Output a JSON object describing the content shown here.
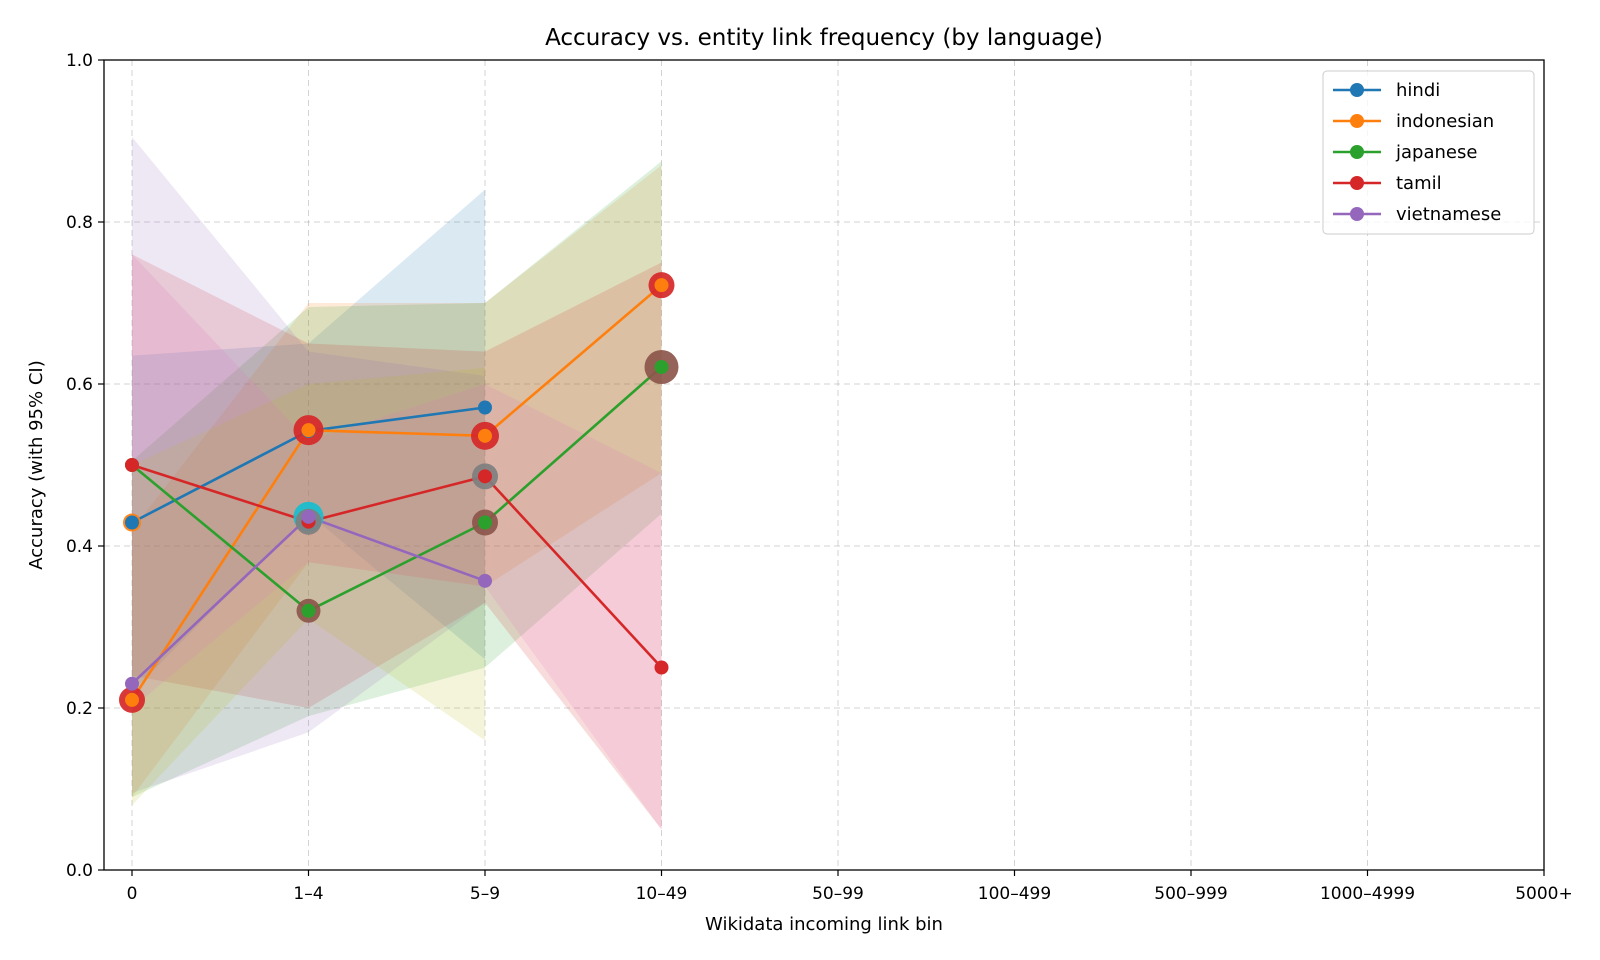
{
  "chart_data": {
    "type": "line",
    "title": "Accuracy vs. entity link frequency (by language)",
    "xlabel": "Wikidata incoming link bin",
    "ylabel": "Accuracy (with 95% CI)",
    "categories": [
      "0",
      "1–4",
      "5–9",
      "10–49",
      "50–99",
      "100–499",
      "500–999",
      "1000–4999",
      "5000+"
    ],
    "ylim": [
      0,
      1
    ],
    "yticks": [
      "0.0",
      "0.2",
      "0.4",
      "0.6",
      "0.8",
      "1.0"
    ],
    "grid": true,
    "legend_position": "top-right",
    "series": [
      {
        "name": "hindi",
        "color": "#1f77b4",
        "values": [
          0.429,
          0.542,
          0.571,
          null,
          null,
          null,
          null,
          null,
          null
        ],
        "ci": [
          [
            0.22,
            0.635
          ],
          [
            0.44,
            0.65
          ],
          [
            0.26,
            0.84
          ],
          null,
          null,
          null,
          null,
          null,
          null
        ]
      },
      {
        "name": "indonesian",
        "color": "#ff7f0e",
        "values": [
          0.21,
          0.543,
          0.536,
          0.722,
          null,
          null,
          null,
          null,
          null
        ],
        "ci": [
          [
            0.09,
            0.42
          ],
          [
            0.38,
            0.7
          ],
          [
            0.35,
            0.7
          ],
          [
            0.49,
            0.87
          ],
          null,
          null,
          null,
          null,
          null
        ]
      },
      {
        "name": "japanese",
        "color": "#2ca02c",
        "values": [
          0.5,
          0.32,
          0.429,
          0.621,
          null,
          null,
          null,
          null,
          null
        ],
        "ci": [
          [
            0.09,
            0.505
          ],
          [
            0.19,
            0.695
          ],
          [
            0.25,
            0.7
          ],
          [
            0.44,
            0.875
          ],
          null,
          null,
          null,
          null,
          null
        ]
      },
      {
        "name": "tamil",
        "color": "#d62728",
        "values": [
          0.5,
          0.43,
          0.486,
          0.25,
          null,
          null,
          null,
          null,
          null
        ],
        "ci": [
          [
            0.24,
            0.76
          ],
          [
            0.2,
            0.65
          ],
          [
            0.33,
            0.64
          ],
          [
            0.05,
            0.75
          ],
          null,
          null,
          null,
          null,
          null
        ]
      },
      {
        "name": "vietnamese",
        "color": "#9467bd",
        "values": [
          0.23,
          0.436,
          0.357,
          null,
          null,
          null,
          null,
          null,
          null
        ],
        "ci": [
          [
            0.095,
            0.905
          ],
          [
            0.17,
            0.64
          ],
          [
            0.33,
            0.61
          ],
          null,
          null,
          null,
          null,
          null,
          null
        ]
      }
    ],
    "bands": [
      {
        "color": "#1f77b4",
        "ci": [
          [
            0.22,
            0.635
          ],
          [
            0.44,
            0.65
          ],
          [
            0.26,
            0.84
          ],
          null,
          null,
          null,
          null,
          null,
          null
        ]
      },
      {
        "color": "#ff7f0e",
        "ci": [
          [
            0.09,
            0.42
          ],
          [
            0.38,
            0.7
          ],
          [
            0.35,
            0.7
          ],
          [
            0.49,
            0.87
          ],
          null,
          null,
          null,
          null,
          null
        ]
      },
      {
        "color": "#2ca02c",
        "ci": [
          [
            0.09,
            0.505
          ],
          [
            0.19,
            0.695
          ],
          [
            0.25,
            0.7
          ],
          [
            0.44,
            0.875
          ],
          null,
          null,
          null,
          null,
          null
        ]
      },
      {
        "color": "#d62728",
        "ci": [
          [
            0.24,
            0.76
          ],
          [
            0.2,
            0.65
          ],
          [
            0.33,
            0.64
          ],
          [
            0.05,
            0.75
          ],
          null,
          null,
          null,
          null,
          null
        ]
      },
      {
        "color": "#9467bd",
        "ci": [
          [
            0.095,
            0.905
          ],
          [
            0.17,
            0.64
          ],
          [
            0.33,
            0.61
          ],
          null,
          null,
          null,
          null,
          null,
          null
        ]
      },
      {
        "color": "#bcbd22",
        "ci": [
          [
            0.08,
            0.5
          ],
          [
            0.31,
            0.6
          ],
          [
            0.16,
            0.62
          ],
          null,
          null,
          null,
          null,
          null,
          null
        ]
      },
      {
        "color": "#e377c2",
        "ci": [
          [
            0.2,
            0.76
          ],
          [
            0.38,
            0.53
          ],
          [
            0.35,
            0.6
          ],
          [
            0.05,
            0.49
          ],
          null,
          null,
          null,
          null,
          null
        ]
      }
    ],
    "markers": [
      {
        "category": 0,
        "value": 0.21,
        "color": "#d62728",
        "size": 13
      },
      {
        "category": 0,
        "value": 0.429,
        "color": "#ff7f0e",
        "size": 9
      },
      {
        "category": 1,
        "value": 0.543,
        "color": "#d62728",
        "size": 15
      },
      {
        "category": 1,
        "value": 0.436,
        "color": "#17becf",
        "size": 15
      },
      {
        "category": 1,
        "value": 0.43,
        "color": "#7f7f7f",
        "size": 13
      },
      {
        "category": 1,
        "value": 0.32,
        "color": "#8c564b",
        "size": 12
      },
      {
        "category": 2,
        "value": 0.536,
        "color": "#d62728",
        "size": 14
      },
      {
        "category": 2,
        "value": 0.486,
        "color": "#7f7f7f",
        "size": 13
      },
      {
        "category": 2,
        "value": 0.429,
        "color": "#8c564b",
        "size": 13
      },
      {
        "category": 3,
        "value": 0.722,
        "color": "#d62728",
        "size": 13
      },
      {
        "category": 3,
        "value": 0.621,
        "color": "#8c564b",
        "size": 17
      }
    ]
  }
}
